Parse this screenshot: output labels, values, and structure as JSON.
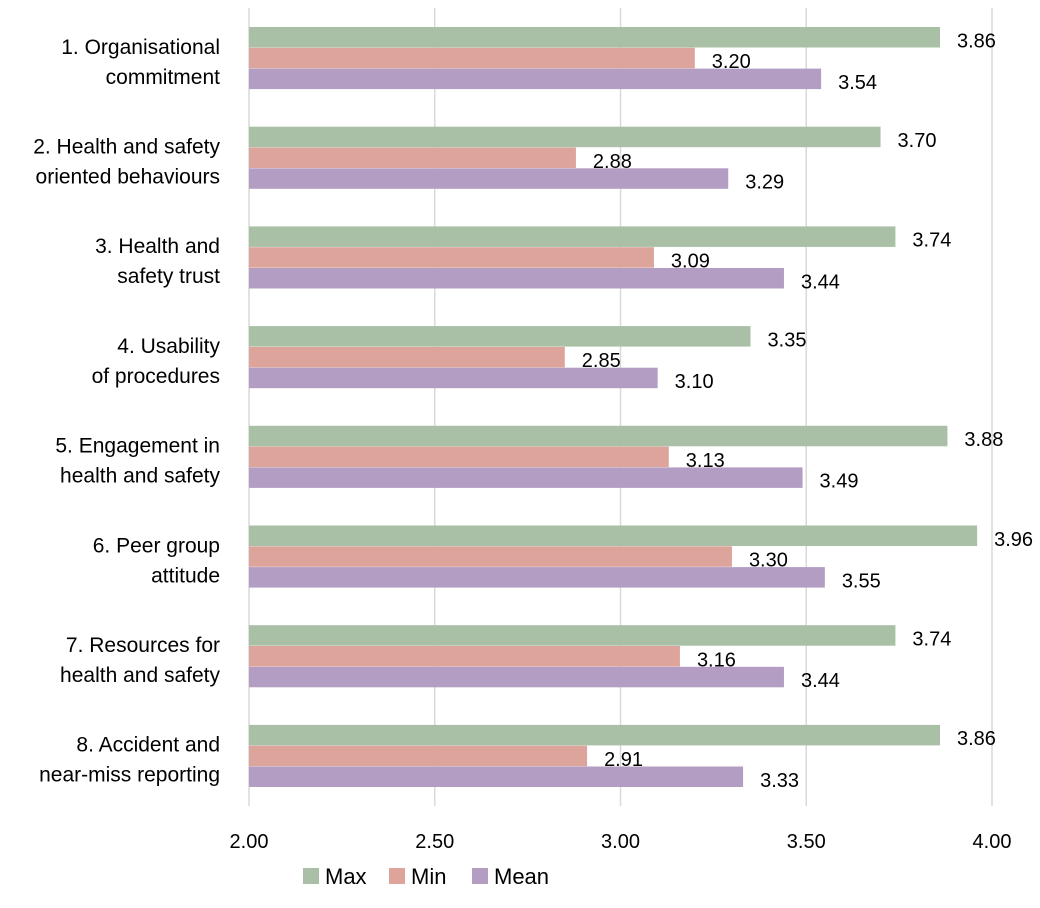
{
  "chart_data": {
    "type": "bar",
    "orientation": "horizontal",
    "categories": [
      [
        "1. Organisational",
        "commitment"
      ],
      [
        "2. Health and safety",
        "oriented behaviours"
      ],
      [
        "3. Health and",
        "safety trust"
      ],
      [
        "4. Usability",
        "of procedures"
      ],
      [
        "5. Engagement in",
        "health and safety"
      ],
      [
        "6. Peer group",
        "attitude"
      ],
      [
        "7. Resources for",
        "health and safety"
      ],
      [
        "8. Accident and",
        "near-miss reporting"
      ]
    ],
    "series": [
      {
        "name": "Max",
        "color": "#a9c0a6",
        "values": [
          3.86,
          3.7,
          3.74,
          3.35,
          3.88,
          3.96,
          3.74,
          3.86
        ],
        "labels": [
          "3.86",
          "3.70",
          "3.74",
          "3.35",
          "3.88",
          "3.96",
          "3.74",
          "3.86"
        ]
      },
      {
        "name": "Min",
        "color": "#dca49a",
        "values": [
          3.2,
          2.88,
          3.09,
          2.85,
          3.13,
          3.3,
          3.16,
          2.91
        ],
        "labels": [
          "3.20",
          "2.88",
          "3.09",
          "2.85",
          "3.13",
          "3.30",
          "3.16",
          "2.91"
        ]
      },
      {
        "name": "Mean",
        "color": "#b39dc2",
        "values": [
          3.54,
          3.29,
          3.44,
          3.1,
          3.49,
          3.55,
          3.44,
          3.33
        ],
        "labels": [
          "3.54",
          "3.29",
          "3.44",
          "3.10",
          "3.49",
          "3.55",
          "3.44",
          "3.33"
        ]
      }
    ],
    "xlim": [
      2.0,
      4.0
    ],
    "xticks": [
      2.0,
      2.5,
      3.0,
      3.5,
      4.0
    ],
    "xtick_labels": [
      "2.00",
      "2.50",
      "3.00",
      "3.50",
      "4.00"
    ],
    "grid": "vertical",
    "gridline_color": "#d9d9d9",
    "legend_position": "bottom-center",
    "xlabel": "",
    "ylabel": ""
  }
}
